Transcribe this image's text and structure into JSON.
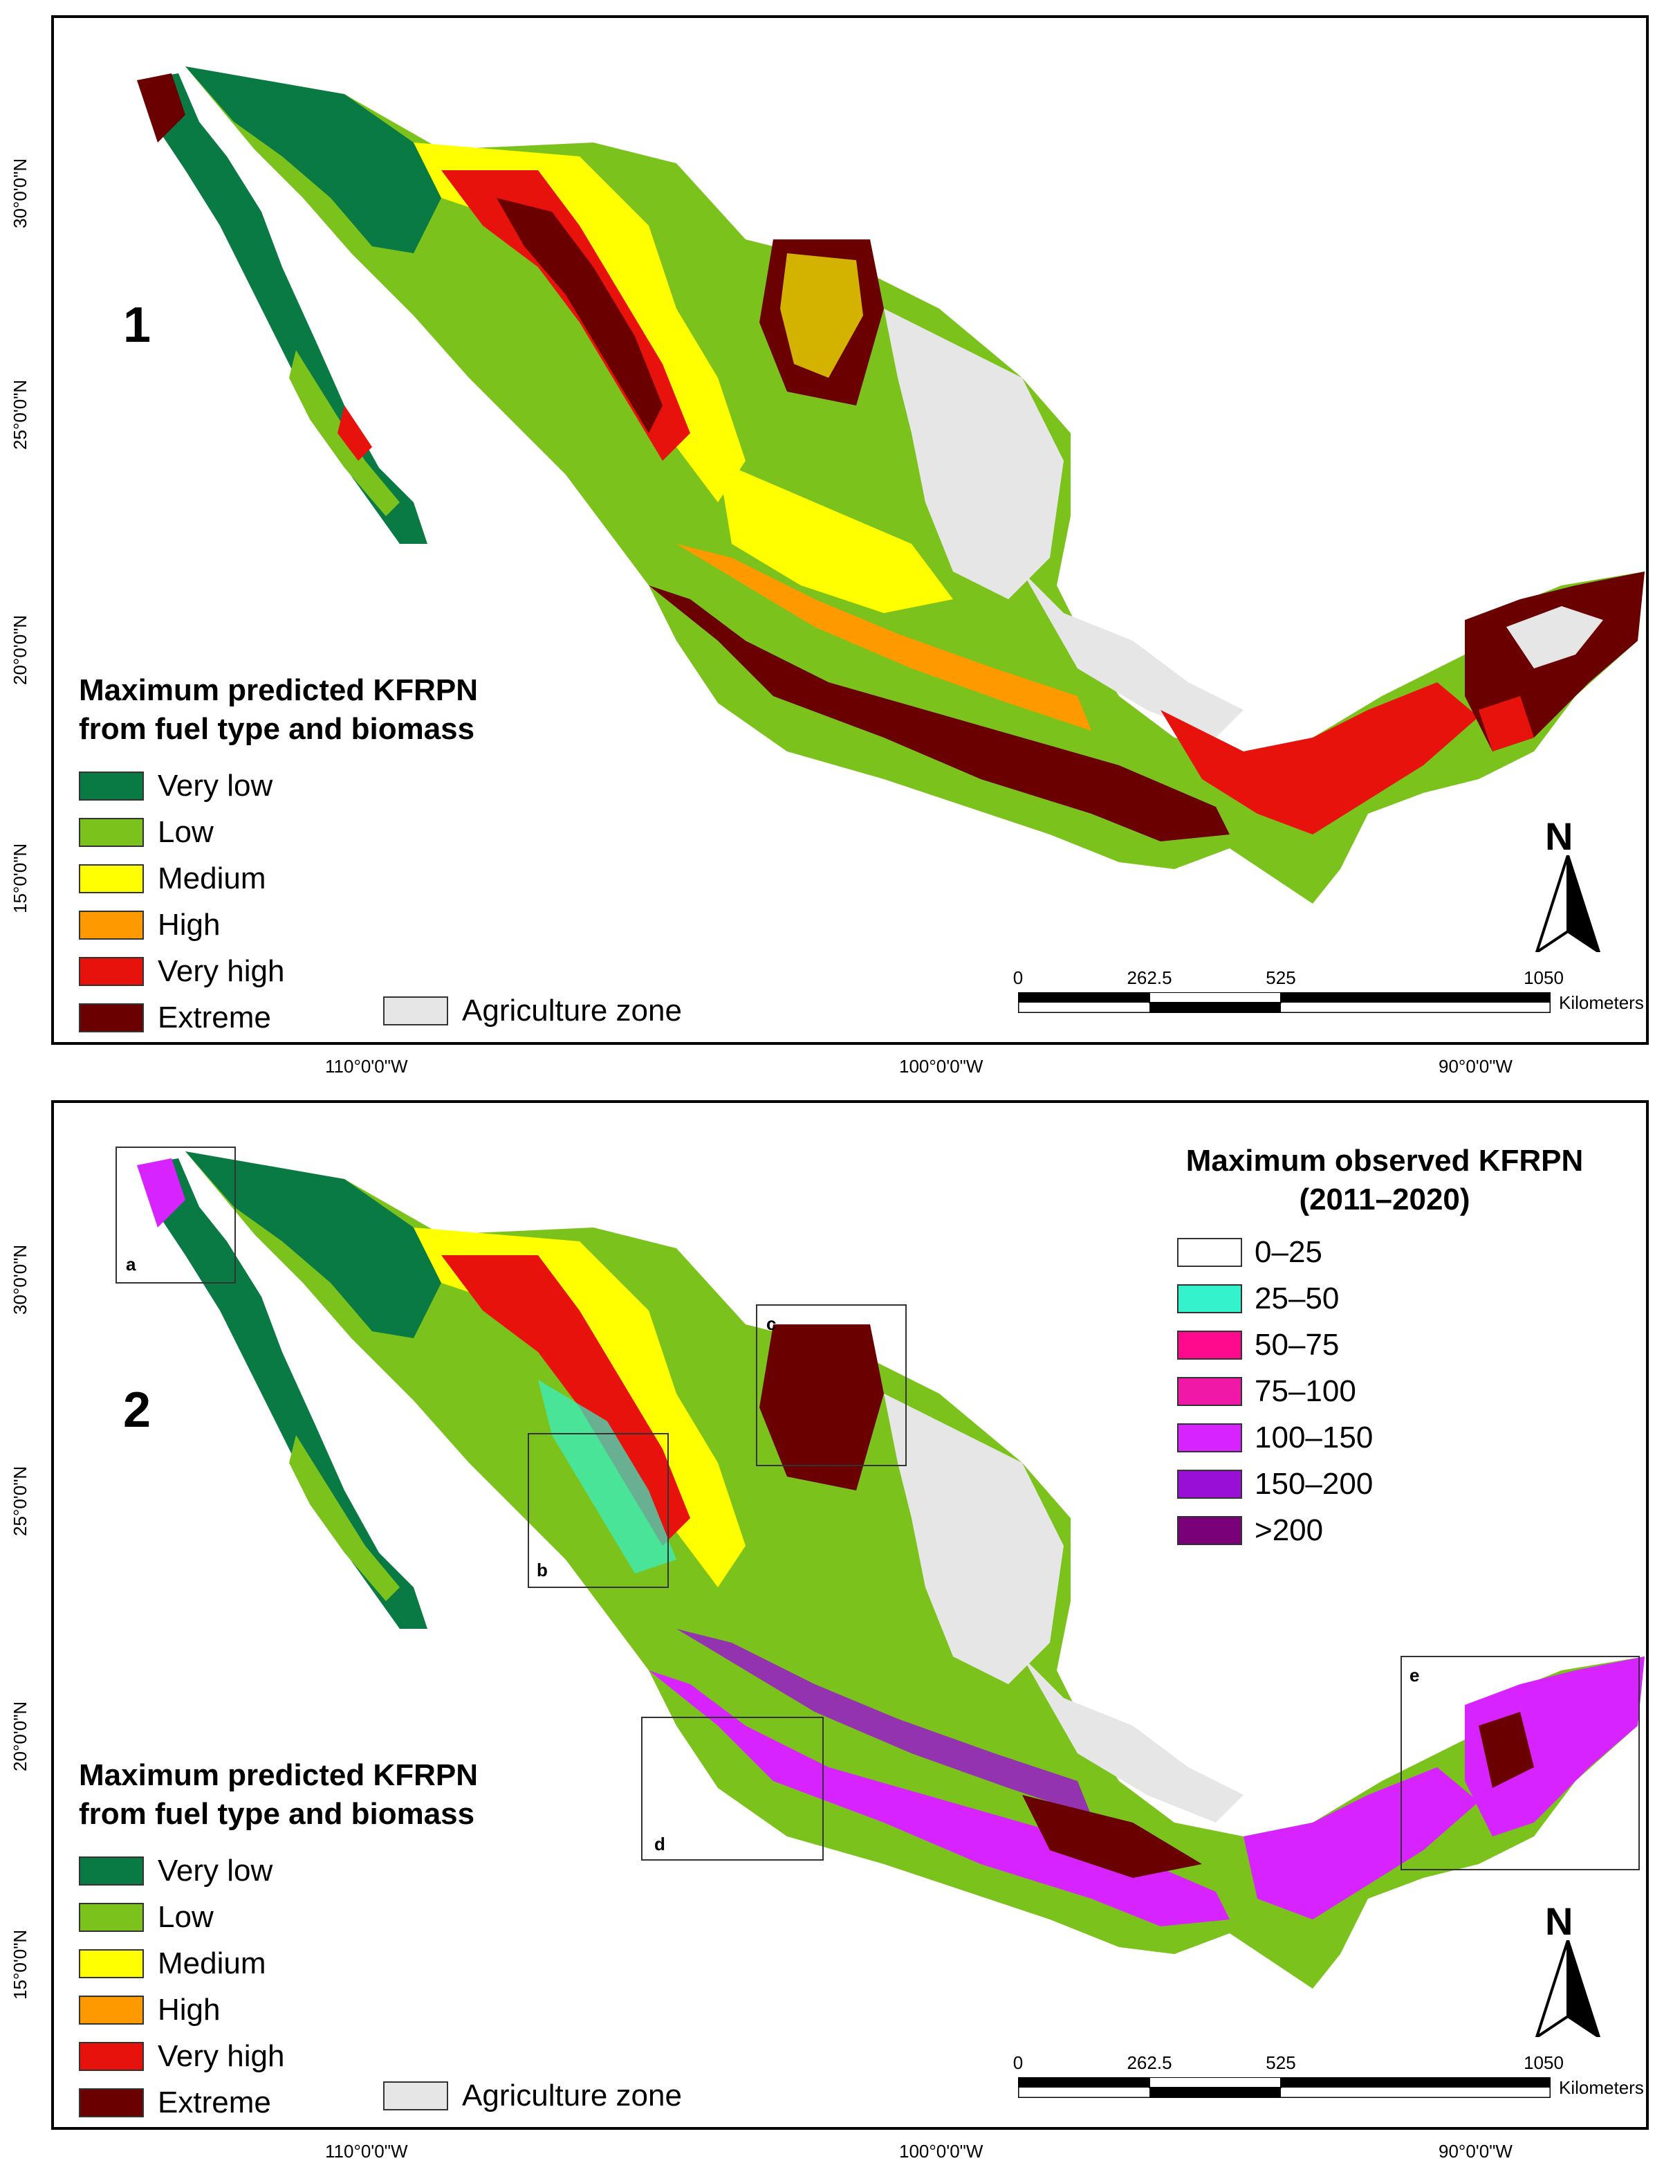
{
  "map1": {
    "number": "1",
    "legend_title_line1": "Maximum predicted KFRPN",
    "legend_title_line2": "from fuel type and biomass",
    "classes": [
      {
        "label": "Very low",
        "color": "#0a7a44"
      },
      {
        "label": "Low",
        "color": "#7cc21d"
      },
      {
        "label": "Medium",
        "color": "#ffff00"
      },
      {
        "label": "High",
        "color": "#ff9900"
      },
      {
        "label": "Very high",
        "color": "#e8120c"
      },
      {
        "label": "Extreme",
        "color": "#6b0000"
      }
    ],
    "agriculture": {
      "label": "Agriculture zone",
      "color": "#e6e6e6"
    },
    "north": "N",
    "scale": {
      "ticks": [
        "0",
        "262.5",
        "525",
        "1050"
      ],
      "unit": "Kilometers"
    }
  },
  "map2": {
    "number": "2",
    "legend_title_line1": "Maximum predicted KFRPN",
    "legend_title_line2": "from fuel type and biomass",
    "classes": [
      {
        "label": "Very low",
        "color": "#0a7a44"
      },
      {
        "label": "Low",
        "color": "#7cc21d"
      },
      {
        "label": "Medium",
        "color": "#ffff00"
      },
      {
        "label": "High",
        "color": "#ff9900"
      },
      {
        "label": "Very high",
        "color": "#e8120c"
      },
      {
        "label": "Extreme",
        "color": "#6b0000"
      }
    ],
    "agriculture": {
      "label": "Agriculture zone",
      "color": "#e6e6e6"
    },
    "observed_title_line1": "Maximum observed KFRPN",
    "observed_title_line2": "(2011–2020)",
    "observed_classes": [
      {
        "label": "0–25",
        "color": "#ffffff"
      },
      {
        "label": "25–50",
        "color": "#33f2cc"
      },
      {
        "label": "50–75",
        "color": "#ff0a8c"
      },
      {
        "label": "75–100",
        "color": "#f018a6"
      },
      {
        "label": "100–150",
        "color": "#d623ff"
      },
      {
        "label": "150–200",
        "color": "#9a0fd6"
      },
      {
        "label": ">200",
        "color": "#7a007a"
      }
    ],
    "boxes": [
      "a",
      "b",
      "c",
      "d",
      "e"
    ],
    "north": "N",
    "scale": {
      "ticks": [
        "0",
        "262.5",
        "525",
        "1050"
      ],
      "unit": "Kilometers"
    }
  },
  "graticule": {
    "latitudes": [
      "30°0'0\"N",
      "25°0'0\"N",
      "20°0'0\"N",
      "15°0'0\"N"
    ],
    "longitudes": [
      "110°0'0\"W",
      "100°0'0\"W",
      "90°0'0\"W"
    ]
  }
}
